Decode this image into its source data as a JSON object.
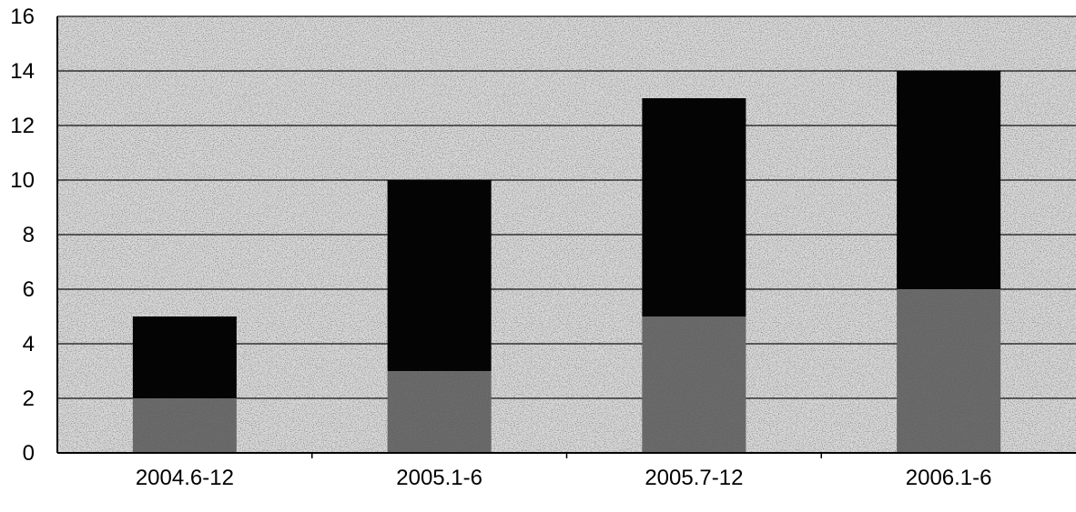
{
  "chart_data": {
    "type": "bar",
    "stacked": true,
    "categories": [
      "2004.6-12",
      "2005.1-6",
      "2005.7-12",
      "2006.1-6"
    ],
    "series": [
      {
        "values": [
          2,
          3,
          5,
          6
        ]
      },
      {
        "values": [
          3,
          7,
          8,
          8
        ]
      }
    ],
    "totals": [
      5,
      10,
      13,
      14
    ],
    "ylim": [
      0,
      16
    ],
    "yticks": [
      "0",
      "2",
      "4",
      "6",
      "8",
      "10",
      "12",
      "14",
      "16"
    ],
    "grid": true,
    "legend": "none",
    "colors": {
      "plot_background": "#d9d9d9",
      "gridline": "#111111",
      "series_bottom": "#6b6b6b",
      "series_top": "#050505"
    }
  }
}
